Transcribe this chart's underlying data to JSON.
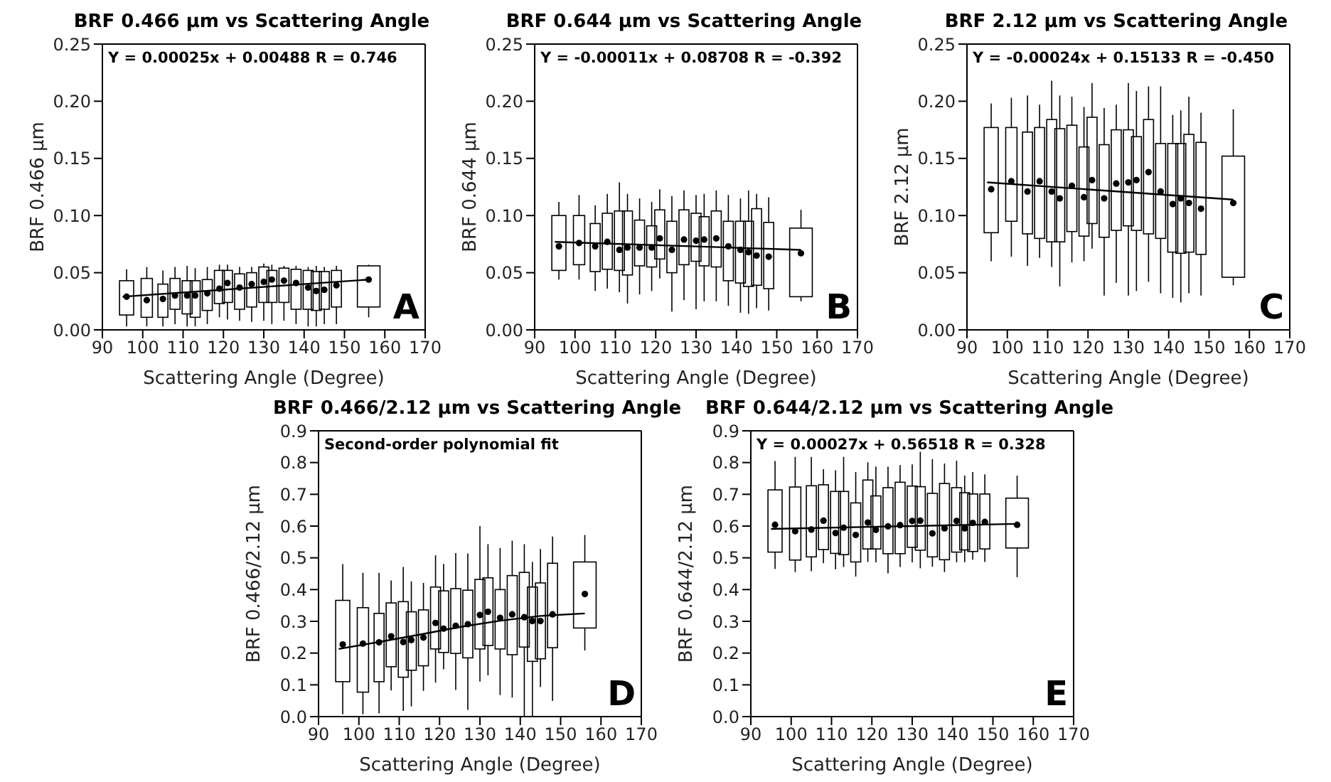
{
  "chart_data": [
    {
      "type": "box",
      "title": "BRF 0.466 μm vs Scattering Angle",
      "xlabel": "Scattering Angle (Degree)",
      "ylabel": "BRF 0.466 μm",
      "xlim": [
        90,
        170
      ],
      "xticks": [
        90,
        100,
        110,
        120,
        130,
        140,
        150,
        160,
        170
      ],
      "ylim": [
        0,
        0.25
      ],
      "yticks": [
        {
          "value": 0,
          "label": "0.00"
        },
        {
          "value": 0.05,
          "label": "0.05"
        },
        {
          "value": 0.1,
          "label": "0.10"
        },
        {
          "value": 0.15,
          "label": "0.15"
        },
        {
          "value": 0.2,
          "label": "0.20"
        },
        {
          "value": 0.25,
          "label": "0.25"
        }
      ],
      "x": [
        96,
        101,
        105,
        108,
        111,
        113,
        116,
        119,
        121,
        124,
        127,
        130,
        132,
        135,
        138,
        141,
        143,
        145,
        148,
        156
      ],
      "boxes": [
        {
          "low": 0.003,
          "q1": 0.013,
          "median": 0.029,
          "q3": 0.043,
          "high": 0.053
        },
        {
          "low": 0.003,
          "q1": 0.011,
          "median": 0.026,
          "q3": 0.045,
          "high": 0.055
        },
        {
          "low": 0.003,
          "q1": 0.011,
          "median": 0.027,
          "q3": 0.04,
          "high": 0.052
        },
        {
          "low": 0.005,
          "q1": 0.018,
          "median": 0.03,
          "q3": 0.045,
          "high": 0.055
        },
        {
          "low": 0.003,
          "q1": 0.014,
          "median": 0.03,
          "q3": 0.043,
          "high": 0.056
        },
        {
          "low": 0.003,
          "q1": 0.011,
          "median": 0.03,
          "q3": 0.043,
          "high": 0.054
        },
        {
          "low": 0.005,
          "q1": 0.017,
          "median": 0.032,
          "q3": 0.044,
          "high": 0.055
        },
        {
          "low": 0.011,
          "q1": 0.023,
          "median": 0.036,
          "q3": 0.052,
          "high": 0.057
        },
        {
          "low": 0.009,
          "q1": 0.024,
          "median": 0.041,
          "q3": 0.052,
          "high": 0.057
        },
        {
          "low": 0.008,
          "q1": 0.018,
          "median": 0.037,
          "q3": 0.049,
          "high": 0.055
        },
        {
          "low": 0.007,
          "q1": 0.02,
          "median": 0.04,
          "q3": 0.05,
          "high": 0.055
        },
        {
          "low": 0.008,
          "q1": 0.024,
          "median": 0.042,
          "q3": 0.055,
          "high": 0.058
        },
        {
          "low": 0.005,
          "q1": 0.024,
          "median": 0.044,
          "q3": 0.052,
          "high": 0.057
        },
        {
          "low": 0.008,
          "q1": 0.024,
          "median": 0.043,
          "q3": 0.054,
          "high": 0.056
        },
        {
          "low": 0.005,
          "q1": 0.018,
          "median": 0.041,
          "q3": 0.053,
          "high": 0.056
        },
        {
          "low": 0.003,
          "q1": 0.018,
          "median": 0.037,
          "q3": 0.052,
          "high": 0.055
        },
        {
          "low": 0.003,
          "q1": 0.017,
          "median": 0.034,
          "q3": 0.051,
          "high": 0.056
        },
        {
          "low": 0.005,
          "q1": 0.018,
          "median": 0.035,
          "q3": 0.051,
          "high": 0.055
        },
        {
          "low": 0.005,
          "q1": 0.02,
          "median": 0.039,
          "q3": 0.052,
          "high": 0.056
        },
        {
          "low": 0.011,
          "q1": 0.02,
          "median": 0.044,
          "q3": 0.056,
          "high": 0.057
        }
      ],
      "series": [
        {
          "type": "line",
          "color": "#000000",
          "x": [
            95,
            156
          ],
          "values": [
            0.029,
            0.044
          ]
        }
      ],
      "annotations": [
        "Y = 0.00025x + 0.00488 R = 0.746",
        "A"
      ]
    },
    {
      "type": "box",
      "title": "BRF 0.644 μm vs Scattering Angle",
      "xlabel": "Scattering Angle (Degree)",
      "ylabel": "BRF 0.644 μm",
      "xlim": [
        90,
        170
      ],
      "xticks": [
        90,
        100,
        110,
        120,
        130,
        140,
        150,
        160,
        170
      ],
      "ylim": [
        0,
        0.25
      ],
      "yticks": [
        {
          "value": 0,
          "label": "0.00"
        },
        {
          "value": 0.05,
          "label": "0.05"
        },
        {
          "value": 0.1,
          "label": "0.10"
        },
        {
          "value": 0.15,
          "label": "0.15"
        },
        {
          "value": 0.2,
          "label": "0.20"
        },
        {
          "value": 0.25,
          "label": "0.25"
        }
      ],
      "x": [
        96,
        101,
        105,
        108,
        111,
        113,
        116,
        119,
        121,
        124,
        127,
        130,
        132,
        135,
        138,
        141,
        143,
        145,
        148,
        156
      ],
      "boxes": [
        {
          "low": 0.044,
          "q1": 0.052,
          "median": 0.073,
          "q3": 0.1,
          "high": 0.112
        },
        {
          "low": 0.044,
          "q1": 0.057,
          "median": 0.076,
          "q3": 0.1,
          "high": 0.118
        },
        {
          "low": 0.034,
          "q1": 0.051,
          "median": 0.073,
          "q3": 0.093,
          "high": 0.109
        },
        {
          "low": 0.036,
          "q1": 0.053,
          "median": 0.077,
          "q3": 0.102,
          "high": 0.119
        },
        {
          "low": 0.033,
          "q1": 0.052,
          "median": 0.07,
          "q3": 0.104,
          "high": 0.129
        },
        {
          "low": 0.023,
          "q1": 0.048,
          "median": 0.072,
          "q3": 0.104,
          "high": 0.119
        },
        {
          "low": 0.031,
          "q1": 0.056,
          "median": 0.072,
          "q3": 0.096,
          "high": 0.115
        },
        {
          "low": 0.034,
          "q1": 0.055,
          "median": 0.072,
          "q3": 0.091,
          "high": 0.112
        },
        {
          "low": 0.045,
          "q1": 0.062,
          "median": 0.08,
          "q3": 0.105,
          "high": 0.123
        },
        {
          "low": 0.016,
          "q1": 0.05,
          "median": 0.07,
          "q3": 0.095,
          "high": 0.117
        },
        {
          "low": 0.026,
          "q1": 0.057,
          "median": 0.079,
          "q3": 0.105,
          "high": 0.122
        },
        {
          "low": 0.018,
          "q1": 0.06,
          "median": 0.078,
          "q3": 0.102,
          "high": 0.118
        },
        {
          "low": 0.025,
          "q1": 0.056,
          "median": 0.079,
          "q3": 0.099,
          "high": 0.119
        },
        {
          "low": 0.025,
          "q1": 0.055,
          "median": 0.08,
          "q3": 0.104,
          "high": 0.122
        },
        {
          "low": 0.021,
          "q1": 0.043,
          "median": 0.073,
          "q3": 0.095,
          "high": 0.118
        },
        {
          "low": 0.015,
          "q1": 0.041,
          "median": 0.07,
          "q3": 0.095,
          "high": 0.115
        },
        {
          "low": 0.014,
          "q1": 0.038,
          "median": 0.068,
          "q3": 0.095,
          "high": 0.122
        },
        {
          "low": 0.019,
          "q1": 0.039,
          "median": 0.065,
          "q3": 0.106,
          "high": 0.119
        },
        {
          "low": 0.017,
          "q1": 0.036,
          "median": 0.064,
          "q3": 0.094,
          "high": 0.116
        },
        {
          "low": 0.025,
          "q1": 0.029,
          "median": 0.067,
          "q3": 0.089,
          "high": 0.105
        }
      ],
      "series": [
        {
          "type": "line",
          "color": "#000000",
          "x": [
            95,
            156
          ],
          "values": [
            0.077,
            0.07
          ]
        }
      ],
      "annotations": [
        "Y = -0.00011x + 0.08708 R = -0.392",
        "B"
      ]
    },
    {
      "type": "box",
      "title": "BRF 2.12 μm vs Scattering Angle",
      "xlabel": "Scattering Angle (Degree)",
      "ylabel": "BRF 2.12 μm",
      "xlim": [
        90,
        170
      ],
      "xticks": [
        90,
        100,
        110,
        120,
        130,
        140,
        150,
        160,
        170
      ],
      "ylim": [
        0,
        0.25
      ],
      "yticks": [
        {
          "value": 0,
          "label": "0.00"
        },
        {
          "value": 0.05,
          "label": "0.05"
        },
        {
          "value": 0.1,
          "label": "0.10"
        },
        {
          "value": 0.15,
          "label": "0.15"
        },
        {
          "value": 0.2,
          "label": "0.20"
        },
        {
          "value": 0.25,
          "label": "0.25"
        }
      ],
      "x": [
        96,
        101,
        105,
        108,
        111,
        113,
        116,
        119,
        121,
        124,
        127,
        130,
        132,
        135,
        138,
        141,
        143,
        145,
        148,
        156
      ],
      "boxes": [
        {
          "low": 0.06,
          "q1": 0.085,
          "median": 0.123,
          "q3": 0.177,
          "high": 0.198
        },
        {
          "low": 0.064,
          "q1": 0.095,
          "median": 0.13,
          "q3": 0.177,
          "high": 0.203
        },
        {
          "low": 0.056,
          "q1": 0.084,
          "median": 0.121,
          "q3": 0.173,
          "high": 0.205
        },
        {
          "low": 0.063,
          "q1": 0.08,
          "median": 0.13,
          "q3": 0.177,
          "high": 0.197
        },
        {
          "low": 0.055,
          "q1": 0.077,
          "median": 0.121,
          "q3": 0.184,
          "high": 0.218
        },
        {
          "low": 0.038,
          "q1": 0.077,
          "median": 0.115,
          "q3": 0.176,
          "high": 0.205
        },
        {
          "low": 0.059,
          "q1": 0.086,
          "median": 0.126,
          "q3": 0.179,
          "high": 0.204
        },
        {
          "low": 0.06,
          "q1": 0.082,
          "median": 0.116,
          "q3": 0.16,
          "high": 0.195
        },
        {
          "low": 0.071,
          "q1": 0.093,
          "median": 0.131,
          "q3": 0.186,
          "high": 0.216
        },
        {
          "low": 0.03,
          "q1": 0.081,
          "median": 0.115,
          "q3": 0.162,
          "high": 0.194
        },
        {
          "low": 0.041,
          "q1": 0.087,
          "median": 0.128,
          "q3": 0.175,
          "high": 0.197
        },
        {
          "low": 0.03,
          "q1": 0.091,
          "median": 0.129,
          "q3": 0.175,
          "high": 0.216
        },
        {
          "low": 0.034,
          "q1": 0.087,
          "median": 0.131,
          "q3": 0.169,
          "high": 0.209
        },
        {
          "low": 0.042,
          "q1": 0.084,
          "median": 0.138,
          "q3": 0.184,
          "high": 0.213
        },
        {
          "low": 0.032,
          "q1": 0.08,
          "median": 0.121,
          "q3": 0.163,
          "high": 0.213
        },
        {
          "low": 0.028,
          "q1": 0.068,
          "median": 0.11,
          "q3": 0.163,
          "high": 0.188
        },
        {
          "low": 0.024,
          "q1": 0.067,
          "median": 0.115,
          "q3": 0.163,
          "high": 0.192
        },
        {
          "low": 0.032,
          "q1": 0.068,
          "median": 0.111,
          "q3": 0.171,
          "high": 0.204
        },
        {
          "low": 0.03,
          "q1": 0.066,
          "median": 0.106,
          "q3": 0.164,
          "high": 0.19
        },
        {
          "low": 0.039,
          "q1": 0.046,
          "median": 0.111,
          "q3": 0.152,
          "high": 0.193
        }
      ],
      "series": [
        {
          "type": "line",
          "color": "#000000",
          "x": [
            95,
            156
          ],
          "values": [
            0.129,
            0.114
          ]
        }
      ],
      "annotations": [
        "Y = -0.00024x + 0.15133 R = -0.450",
        "C"
      ]
    },
    {
      "type": "box",
      "title": "BRF 0.466/2.12 μm vs Scattering Angle",
      "xlabel": "Scattering Angle (Degree)",
      "ylabel": "BRF 0.466/2.12 μm",
      "xlim": [
        90,
        170
      ],
      "xticks": [
        90,
        100,
        110,
        120,
        130,
        140,
        150,
        160,
        170
      ],
      "ylim": [
        0,
        0.9
      ],
      "yticks": [
        {
          "value": 0,
          "label": "0.0"
        },
        {
          "value": 0.1,
          "label": "0.1"
        },
        {
          "value": 0.2,
          "label": "0.2"
        },
        {
          "value": 0.3,
          "label": "0.3"
        },
        {
          "value": 0.4,
          "label": "0.4"
        },
        {
          "value": 0.5,
          "label": "0.5"
        },
        {
          "value": 0.6,
          "label": "0.6"
        },
        {
          "value": 0.7,
          "label": "0.7"
        },
        {
          "value": 0.8,
          "label": "0.8"
        },
        {
          "value": 0.9,
          "label": "0.9"
        }
      ],
      "x": [
        96,
        101,
        105,
        108,
        111,
        113,
        116,
        119,
        121,
        124,
        127,
        130,
        132,
        135,
        138,
        141,
        143,
        145,
        148,
        156
      ],
      "boxes": [
        {
          "low": 0.007,
          "q1": 0.11,
          "median": 0.227,
          "q3": 0.366,
          "high": 0.48
        },
        {
          "low": 0.007,
          "q1": 0.077,
          "median": 0.23,
          "q3": 0.343,
          "high": 0.453
        },
        {
          "low": 0.01,
          "q1": 0.11,
          "median": 0.234,
          "q3": 0.325,
          "high": 0.453
        },
        {
          "low": 0.082,
          "q1": 0.157,
          "median": 0.253,
          "q3": 0.358,
          "high": 0.429
        },
        {
          "low": 0.018,
          "q1": 0.124,
          "median": 0.235,
          "q3": 0.362,
          "high": 0.471
        },
        {
          "low": 0.032,
          "q1": 0.146,
          "median": 0.241,
          "q3": 0.33,
          "high": 0.426
        },
        {
          "low": 0.081,
          "q1": 0.16,
          "median": 0.249,
          "q3": 0.336,
          "high": 0.421
        },
        {
          "low": 0.107,
          "q1": 0.213,
          "median": 0.295,
          "q3": 0.408,
          "high": 0.508
        },
        {
          "low": 0.149,
          "q1": 0.202,
          "median": 0.277,
          "q3": 0.396,
          "high": 0.481
        },
        {
          "low": 0.084,
          "q1": 0.199,
          "median": 0.286,
          "q3": 0.403,
          "high": 0.515
        },
        {
          "low": 0.021,
          "q1": 0.185,
          "median": 0.291,
          "q3": 0.398,
          "high": 0.514
        },
        {
          "low": 0.11,
          "q1": 0.213,
          "median": 0.32,
          "q3": 0.432,
          "high": 0.6
        },
        {
          "low": 0.13,
          "q1": 0.224,
          "median": 0.33,
          "q3": 0.437,
          "high": 0.543
        },
        {
          "low": 0.068,
          "q1": 0.213,
          "median": 0.311,
          "q3": 0.4,
          "high": 0.531
        },
        {
          "low": 0.06,
          "q1": 0.195,
          "median": 0.322,
          "q3": 0.444,
          "high": 0.554
        },
        {
          "low": 0,
          "q1": 0.219,
          "median": 0.313,
          "q3": 0.454,
          "high": 0.543
        },
        {
          "low": 0,
          "q1": 0.174,
          "median": 0.301,
          "q3": 0.408,
          "high": 0.487
        },
        {
          "low": 0.093,
          "q1": 0.182,
          "median": 0.301,
          "q3": 0.421,
          "high": 0.528
        },
        {
          "low": 0.049,
          "q1": 0.217,
          "median": 0.322,
          "q3": 0.483,
          "high": 0.567
        },
        {
          "low": 0.208,
          "q1": 0.279,
          "median": 0.386,
          "q3": 0.487,
          "high": 0.572
        }
      ],
      "series": [
        {
          "type": "line",
          "color": "#000000",
          "x": [
            95,
            105,
            115,
            125,
            135,
            145,
            156
          ],
          "values": [
            0.213,
            0.235,
            0.258,
            0.282,
            0.302,
            0.317,
            0.325
          ]
        }
      ],
      "annotations": [
        "Second-order polynomial fit",
        "D"
      ]
    },
    {
      "type": "box",
      "title": "BRF 0.644/2.12 μm vs Scattering Angle",
      "xlabel": "Scattering Angle (Degree)",
      "ylabel": "BRF 0.644/2.12 μm",
      "xlim": [
        90,
        170
      ],
      "xticks": [
        90,
        100,
        110,
        120,
        130,
        140,
        150,
        160,
        170
      ],
      "ylim": [
        0,
        0.9
      ],
      "yticks": [
        {
          "value": 0,
          "label": "0.0"
        },
        {
          "value": 0.1,
          "label": "0.1"
        },
        {
          "value": 0.2,
          "label": "0.2"
        },
        {
          "value": 0.3,
          "label": "0.3"
        },
        {
          "value": 0.4,
          "label": "0.4"
        },
        {
          "value": 0.5,
          "label": "0.5"
        },
        {
          "value": 0.6,
          "label": "0.6"
        },
        {
          "value": 0.7,
          "label": "0.7"
        },
        {
          "value": 0.8,
          "label": "0.8"
        },
        {
          "value": 0.9,
          "label": "0.9"
        }
      ],
      "x": [
        96,
        101,
        105,
        108,
        111,
        113,
        116,
        119,
        121,
        124,
        127,
        130,
        132,
        135,
        138,
        141,
        143,
        145,
        148,
        156
      ],
      "boxes": [
        {
          "low": 0.465,
          "q1": 0.518,
          "median": 0.604,
          "q3": 0.714,
          "high": 0.805
        },
        {
          "low": 0.455,
          "q1": 0.493,
          "median": 0.584,
          "q3": 0.723,
          "high": 0.818
        },
        {
          "low": 0.458,
          "q1": 0.503,
          "median": 0.589,
          "q3": 0.727,
          "high": 0.818
        },
        {
          "low": 0.483,
          "q1": 0.526,
          "median": 0.617,
          "q3": 0.73,
          "high": 0.779
        },
        {
          "low": 0.464,
          "q1": 0.514,
          "median": 0.578,
          "q3": 0.709,
          "high": 0.776
        },
        {
          "low": 0.471,
          "q1": 0.51,
          "median": 0.595,
          "q3": 0.709,
          "high": 0.818
        },
        {
          "low": 0.441,
          "q1": 0.487,
          "median": 0.572,
          "q3": 0.673,
          "high": 0.77
        },
        {
          "low": 0.487,
          "q1": 0.528,
          "median": 0.611,
          "q3": 0.745,
          "high": 0.801
        },
        {
          "low": 0.486,
          "q1": 0.528,
          "median": 0.588,
          "q3": 0.695,
          "high": 0.787
        },
        {
          "low": 0.451,
          "q1": 0.513,
          "median": 0.599,
          "q3": 0.721,
          "high": 0.787
        },
        {
          "low": 0.471,
          "q1": 0.513,
          "median": 0.603,
          "q3": 0.738,
          "high": 0.792
        },
        {
          "low": 0.486,
          "q1": 0.533,
          "median": 0.616,
          "q3": 0.726,
          "high": 0.794
        },
        {
          "low": 0.467,
          "q1": 0.524,
          "median": 0.617,
          "q3": 0.724,
          "high": 0.834
        },
        {
          "low": 0.472,
          "q1": 0.503,
          "median": 0.577,
          "q3": 0.703,
          "high": 0.811
        },
        {
          "low": 0.455,
          "q1": 0.494,
          "median": 0.593,
          "q3": 0.734,
          "high": 0.797
        },
        {
          "low": 0.486,
          "q1": 0.518,
          "median": 0.616,
          "q3": 0.721,
          "high": 0.806
        },
        {
          "low": 0.486,
          "q1": 0.525,
          "median": 0.593,
          "q3": 0.705,
          "high": 0.759
        },
        {
          "low": 0.494,
          "q1": 0.52,
          "median": 0.61,
          "q3": 0.701,
          "high": 0.77
        },
        {
          "low": 0.487,
          "q1": 0.528,
          "median": 0.613,
          "q3": 0.701,
          "high": 0.763
        },
        {
          "low": 0.439,
          "q1": 0.531,
          "median": 0.604,
          "q3": 0.688,
          "high": 0.759
        }
      ],
      "series": [
        {
          "type": "line",
          "color": "#000000",
          "x": [
            95,
            156
          ],
          "values": [
            0.591,
            0.607
          ]
        }
      ],
      "annotations": [
        "Y = 0.00027x + 0.56518 R = 0.328",
        "E"
      ]
    }
  ]
}
